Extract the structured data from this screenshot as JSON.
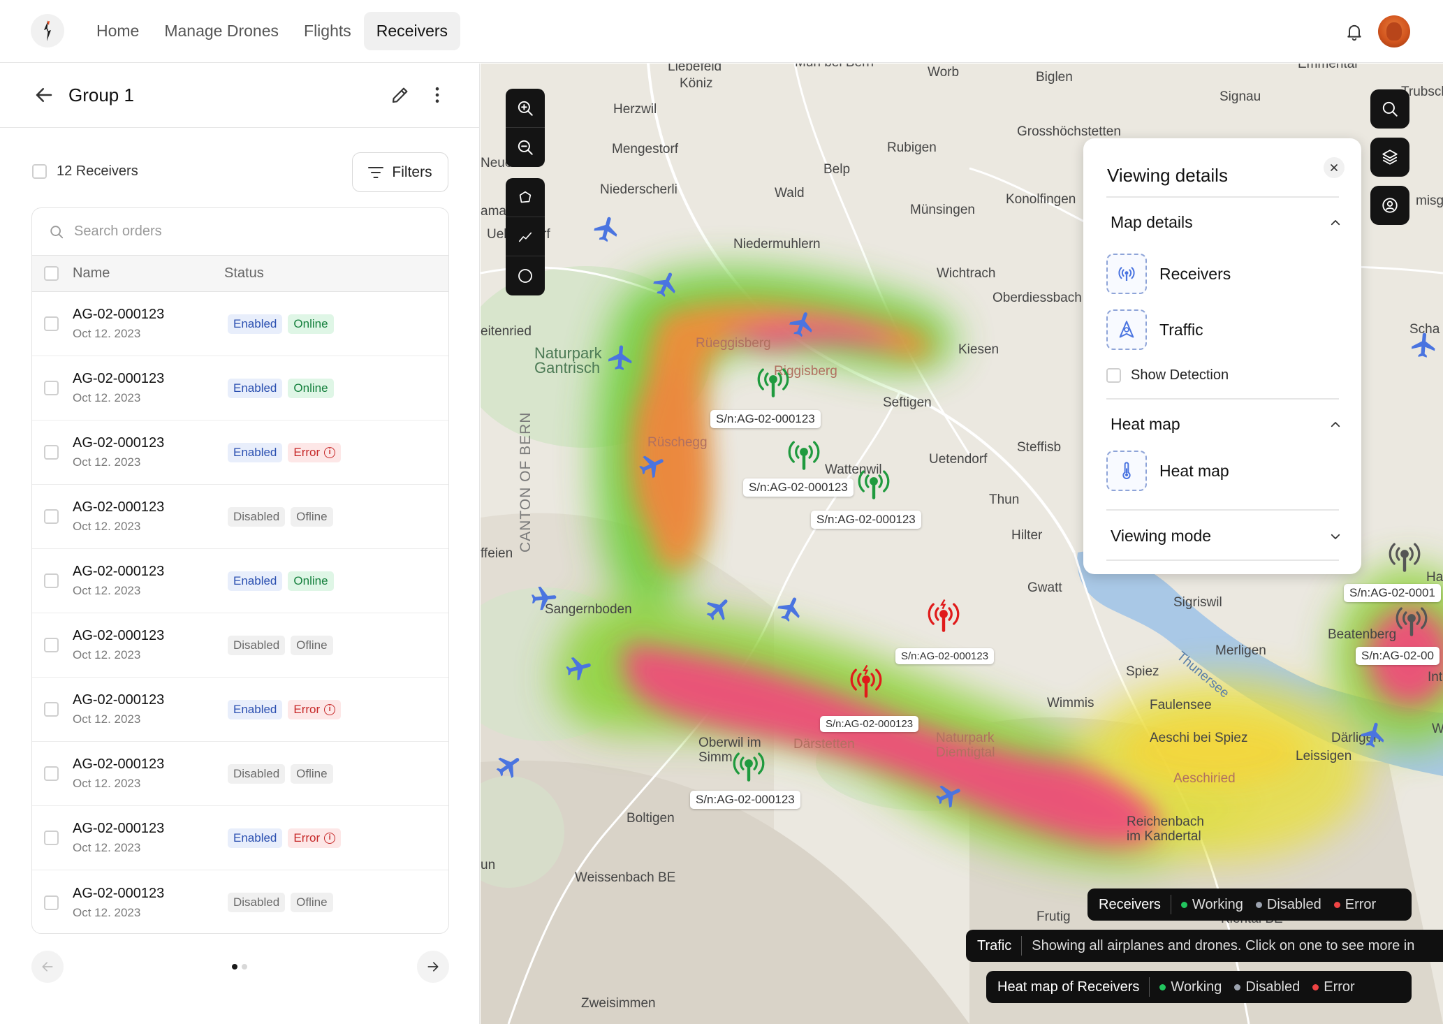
{
  "nav": {
    "items": [
      {
        "label": "Home"
      },
      {
        "label": "Manage Drones"
      },
      {
        "label": "Flights"
      },
      {
        "label": "Receivers",
        "active": true
      }
    ],
    "icons": [
      "logo-icon",
      "bell-icon",
      "avatar"
    ]
  },
  "group": {
    "title": "Group 1",
    "count_label": "12 Receivers",
    "filters_label": "Filters"
  },
  "table": {
    "search_placeholder": "Search orders",
    "columns": {
      "name": "Name",
      "status": "Status"
    },
    "rows": [
      {
        "name": "AG-02-000123",
        "date": "Oct 12. 2023",
        "state": "Enabled",
        "conn": "Online"
      },
      {
        "name": "AG-02-000123",
        "date": "Oct 12. 2023",
        "state": "Enabled",
        "conn": "Online"
      },
      {
        "name": "AG-02-000123",
        "date": "Oct 12. 2023",
        "state": "Enabled",
        "conn": "Error"
      },
      {
        "name": "AG-02-000123",
        "date": "Oct 12. 2023",
        "state": "Disabled",
        "conn": "Ofline"
      },
      {
        "name": "AG-02-000123",
        "date": "Oct 12. 2023",
        "state": "Enabled",
        "conn": "Online"
      },
      {
        "name": "AG-02-000123",
        "date": "Oct 12. 2023",
        "state": "Disabled",
        "conn": "Ofline"
      },
      {
        "name": "AG-02-000123",
        "date": "Oct 12. 2023",
        "state": "Enabled",
        "conn": "Error"
      },
      {
        "name": "AG-02-000123",
        "date": "Oct 12. 2023",
        "state": "Disabled",
        "conn": "Ofline"
      },
      {
        "name": "AG-02-000123",
        "date": "Oct 12. 2023",
        "state": "Enabled",
        "conn": "Error"
      },
      {
        "name": "AG-02-000123",
        "date": "Oct 12. 2023",
        "state": "Disabled",
        "conn": "Ofline"
      }
    ]
  },
  "pagination": {
    "current_page": 1,
    "pages": 2
  },
  "map": {
    "places": {
      "liebefeld": "Liebefeld",
      "koniz": "Köniz",
      "muri": "Muri bei Bern",
      "worb": "Worb",
      "biglen": "Biglen",
      "emmental": "Emmental",
      "herzwil": "Herzwil",
      "signau": "Signau",
      "trubschachen": "Trubschac",
      "grosshochstetten": "Grosshöchstetten",
      "neuenegg": "Neue",
      "mengestorf": "Mengestorf",
      "rubigen": "Rubigen",
      "belp": "Belp",
      "niederscherli": "Niederscherli",
      "wald": "Wald",
      "konolfingen": "Konolfingen",
      "munsingen": "Münsingen",
      "schwarzenburg_a": "ama",
      "uel": "Uel",
      "rf": "rf",
      "zaziwil": "misgu",
      "niedermuhlern": "Niedermuhlern",
      "wichtrach": "Wichtrach",
      "oberdiessbach": "Oberdiessbach",
      "kiesen": "Kiesen",
      "schangnau": "Scha",
      "seitenried": "eitenried",
      "naturpark_gantrisch": "Naturpark\nGantrisch",
      "rueggisberg": "Rüeggisberg",
      "riggisberg": "Riggisberg",
      "seftigen": "Seftigen",
      "ruschegg": "Rüschegg",
      "wattenwil": "Wattenwil",
      "uetendorf": "Uetendorf",
      "steffisburg": "Steffisb",
      "thun": "Thun",
      "hilterfingen": "Hilter",
      "canton": "CANTON OF BERN",
      "feien": "ffeien",
      "gwatt": "Gwatt",
      "sigriswil": "Sigriswil",
      "sangernboden": "Sangernboden",
      "merligen": "Merligen",
      "beatenberg": "Beatenberg",
      "spiez": "Spiez",
      "thunersee": "Thunersee",
      "wimmis": "Wimmis",
      "faulensee": "Faulensee",
      "interlaken": "Inte",
      "ha": "Ha",
      "oberwil": "Oberwil im\nSimm",
      "darstetten": "Därstetten",
      "naturpark_diemtigtal": "Naturpark\nDiemtigtal",
      "aeschi": "Aeschi\nbei Spiez",
      "darligen": "Därligen",
      "leissigen": "Leissigen",
      "w": "W",
      "aeschiried": "Aeschiried",
      "boltigen": "Boltigen",
      "reichenbach": "Reichenbach\nim Kandertal",
      "weissenbach": "Weissenbach BE",
      "un": "un",
      "frutigen": "Frutig",
      "kiental": "Kiental BE",
      "zweisimmen": "Zweisimmen"
    },
    "receiver_labels": [
      "S/n:AG-02-000123",
      "S/n:AG-02-000123",
      "S/n:AG-02-000123",
      "S/n:AG-02-000123",
      "S/n:AG-02-000123",
      "S/n:AG-02-000123",
      "S/n:AG-02-0001",
      "S/n:AG-02-00"
    ],
    "colors": {
      "plane": "#4a74e0",
      "rx_working": "#1f9a3e",
      "rx_error": "#e01b1b",
      "rx_disabled": "#555555"
    }
  },
  "viewing_details": {
    "title": "Viewing details",
    "map_details": "Map details",
    "receivers": "Receivers",
    "traffic": "Traffic",
    "show_detection": "Show Detection",
    "heat_map_section": "Heat map",
    "heat_map_item": "Heat map",
    "viewing_mode": "Viewing mode"
  },
  "legends": {
    "receivers": {
      "title": "Receivers",
      "working": "Working",
      "disabled": "Disabled",
      "error": "Error"
    },
    "traffic": {
      "title": "Trafic",
      "message": "Showing all airplanes and drones. Click on one to see more in"
    },
    "heatmap": {
      "title": "Heat map of Receivers",
      "working": "Working",
      "disabled": "Disabled",
      "error": "Error"
    }
  }
}
